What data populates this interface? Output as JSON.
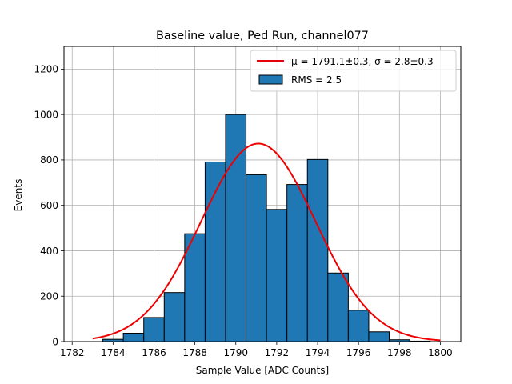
{
  "chart_data": {
    "type": "histogram",
    "title": "Baseline value, Ped Run, channel077",
    "xlabel": "Sample Value [ADC Counts]",
    "ylabel": "Events",
    "xlim": [
      1781.6,
      1801.0
    ],
    "ylim": [
      0,
      1300
    ],
    "xticks": [
      1782,
      1784,
      1786,
      1788,
      1790,
      1792,
      1794,
      1796,
      1798,
      1800
    ],
    "yticks": [
      0,
      200,
      400,
      600,
      800,
      1000,
      1200
    ],
    "grid": true,
    "legend_position": "top-right",
    "bin_width": 1,
    "bins": [
      {
        "left": 1783.5,
        "count": 10
      },
      {
        "left": 1784.5,
        "count": 37
      },
      {
        "left": 1785.5,
        "count": 106
      },
      {
        "left": 1786.5,
        "count": 216
      },
      {
        "left": 1787.5,
        "count": 475
      },
      {
        "left": 1788.5,
        "count": 791
      },
      {
        "left": 1789.5,
        "count": 1000
      },
      {
        "left": 1790.5,
        "count": 735
      },
      {
        "left": 1791.5,
        "count": 582
      },
      {
        "left": 1792.5,
        "count": 692
      },
      {
        "left": 1793.5,
        "count": 802
      },
      {
        "left": 1794.5,
        "count": 302
      },
      {
        "left": 1795.5,
        "count": 138
      },
      {
        "left": 1796.5,
        "count": 43
      },
      {
        "left": 1797.5,
        "count": 8
      },
      {
        "left": 1798.5,
        "count": 2
      }
    ],
    "fit": {
      "mu": 1791.1,
      "sigma": 2.8,
      "peak": 872,
      "x_range": [
        1783,
        1800
      ]
    },
    "legend": [
      {
        "label": "μ = 1791.1±0.3, σ = 2.8±0.3",
        "color": "#e8000b",
        "kind": "line"
      },
      {
        "label": "RMS = 2.5",
        "color": "#1f77b4",
        "kind": "patch"
      }
    ],
    "colors": {
      "bars": "#1f77b4",
      "bar_edge": "#000000",
      "fit_line": "#ee0000",
      "grid": "#b0b0b0"
    }
  }
}
